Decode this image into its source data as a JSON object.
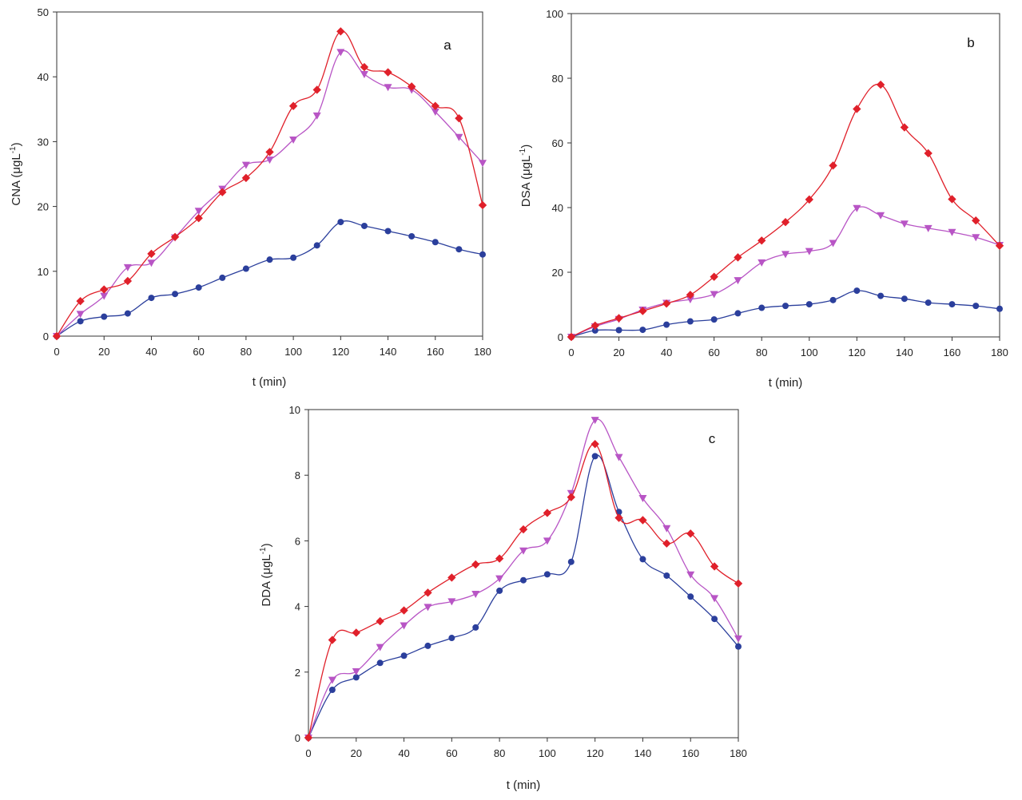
{
  "chart_data": [
    {
      "type": "line",
      "panel_label": "a",
      "xlabel": "t (min)",
      "ylabel": "CNA (μgL",
      "ylabel_sup": "-1",
      "ylabel_end": ")",
      "xlim": [
        0,
        180
      ],
      "ylim": [
        0,
        50
      ],
      "x_ticks": [
        "0",
        "20",
        "40",
        "60",
        "80",
        "100",
        "120",
        "140",
        "160",
        "180"
      ],
      "y_ticks": [
        "0",
        "10",
        "20",
        "30",
        "40",
        "50"
      ],
      "x": [
        0,
        10,
        20,
        30,
        40,
        50,
        60,
        70,
        80,
        90,
        100,
        110,
        120,
        130,
        140,
        150,
        160,
        170,
        180
      ],
      "series": [
        {
          "name": "red",
          "color": "#e0202a",
          "marker": "diamond",
          "values": [
            0,
            5.4,
            7.2,
            8.5,
            12.7,
            15.3,
            18.2,
            22.2,
            24.4,
            28.4,
            35.5,
            38.0,
            47.0,
            41.5,
            40.7,
            38.5,
            35.5,
            33.6,
            20.2
          ]
        },
        {
          "name": "magenta",
          "color": "#b855c5",
          "marker": "triangle-down",
          "values": [
            0,
            3.4,
            6.2,
            10.6,
            11.3,
            15.2,
            19.3,
            22.7,
            26.4,
            27.2,
            30.3,
            34.0,
            43.8,
            40.4,
            38.4,
            38.0,
            34.6,
            30.7,
            26.7
          ]
        },
        {
          "name": "blue",
          "color": "#2b3f9c",
          "marker": "circle",
          "values": [
            0,
            2.3,
            3.0,
            3.5,
            5.9,
            6.5,
            7.5,
            9.0,
            10.4,
            11.8,
            12.1,
            14.0,
            17.6,
            17.0,
            16.2,
            15.4,
            14.5,
            13.4,
            12.6
          ]
        }
      ]
    },
    {
      "type": "line",
      "panel_label": "b",
      "xlabel": "t (min)",
      "ylabel": "DSA (μgL",
      "ylabel_sup": "-1",
      "ylabel_end": ")",
      "xlim": [
        0,
        180
      ],
      "ylim": [
        0,
        100
      ],
      "x_ticks": [
        "0",
        "20",
        "40",
        "60",
        "80",
        "100",
        "120",
        "140",
        "160",
        "180"
      ],
      "y_ticks": [
        "0",
        "20",
        "40",
        "60",
        "80",
        "100"
      ],
      "x": [
        0,
        10,
        20,
        30,
        40,
        50,
        60,
        70,
        80,
        90,
        100,
        110,
        120,
        130,
        140,
        150,
        160,
        170,
        180
      ],
      "series": [
        {
          "name": "red",
          "color": "#e0202a",
          "marker": "diamond",
          "values": [
            0,
            3.5,
            5.8,
            8.0,
            10.3,
            13.0,
            18.6,
            24.6,
            29.8,
            35.5,
            42.5,
            53.0,
            70.5,
            78.0,
            64.8,
            56.8,
            42.6,
            36.0,
            28.2
          ]
        },
        {
          "name": "magenta",
          "color": "#b855c5",
          "marker": "triangle-down",
          "values": [
            0,
            3.2,
            5.5,
            8.4,
            10.5,
            11.6,
            13.2,
            17.5,
            23.0,
            25.6,
            26.5,
            29.0,
            39.8,
            37.6,
            35.0,
            33.6,
            32.4,
            30.8,
            28.4
          ]
        },
        {
          "name": "blue",
          "color": "#2b3f9c",
          "marker": "circle",
          "values": [
            0,
            2.0,
            2.1,
            2.2,
            3.8,
            4.8,
            5.4,
            7.3,
            9.0,
            9.6,
            10.1,
            11.4,
            14.3,
            12.7,
            11.8,
            10.6,
            10.1,
            9.6,
            8.7
          ]
        }
      ]
    },
    {
      "type": "line",
      "panel_label": "c",
      "xlabel": "t (min)",
      "ylabel": "DDA (μgL",
      "ylabel_sup": "-1",
      "ylabel_end": ")",
      "xlim": [
        0,
        180
      ],
      "ylim": [
        0,
        10
      ],
      "x_ticks": [
        "0",
        "20",
        "40",
        "60",
        "80",
        "100",
        "120",
        "140",
        "160",
        "180"
      ],
      "y_ticks": [
        "0",
        "2",
        "4",
        "6",
        "8",
        "10"
      ],
      "x": [
        0,
        10,
        20,
        30,
        40,
        50,
        60,
        70,
        80,
        90,
        100,
        110,
        120,
        130,
        140,
        150,
        160,
        170,
        180
      ],
      "series": [
        {
          "name": "red",
          "color": "#e0202a",
          "marker": "diamond",
          "values": [
            0,
            2.98,
            3.2,
            3.55,
            3.88,
            4.42,
            4.88,
            5.28,
            5.46,
            6.35,
            6.85,
            7.33,
            8.95,
            6.7,
            6.63,
            5.92,
            6.22,
            5.22,
            4.7
          ]
        },
        {
          "name": "magenta",
          "color": "#b855c5",
          "marker": "triangle-down",
          "values": [
            0,
            1.76,
            2.02,
            2.76,
            3.42,
            3.98,
            4.15,
            4.38,
            4.85,
            5.7,
            6.0,
            7.45,
            9.68,
            8.55,
            7.3,
            6.38,
            4.97,
            4.25,
            3.02
          ]
        },
        {
          "name": "blue",
          "color": "#2b3f9c",
          "marker": "circle",
          "values": [
            0,
            1.46,
            1.84,
            2.28,
            2.5,
            2.8,
            3.04,
            3.36,
            4.48,
            4.8,
            4.98,
            5.36,
            8.58,
            6.88,
            5.44,
            4.94,
            4.3,
            3.62,
            2.78
          ]
        }
      ]
    }
  ]
}
